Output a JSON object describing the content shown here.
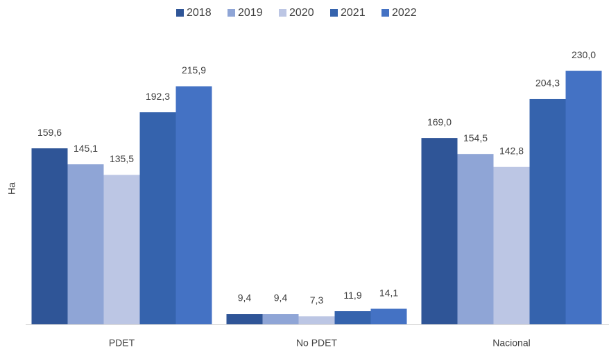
{
  "chart_data": {
    "type": "bar",
    "y_label": "Ha",
    "categories": [
      "PDET",
      "No PDET",
      "Nacional"
    ],
    "series": [
      {
        "name": "2018",
        "color": "#2f5597",
        "values": [
          159.6,
          9.4,
          169.0
        ],
        "value_labels": [
          "159,6",
          "9,4",
          "169,0"
        ]
      },
      {
        "name": "2019",
        "color": "#8fa5d6",
        "values": [
          145.1,
          9.4,
          154.5
        ],
        "value_labels": [
          "145,1",
          "9,4",
          "154,5"
        ]
      },
      {
        "name": "2020",
        "color": "#bcc6e4",
        "values": [
          135.5,
          7.3,
          142.8
        ],
        "value_labels": [
          "135,5",
          "7,3",
          "142,8"
        ]
      },
      {
        "name": "2021",
        "color": "#3563ad",
        "values": [
          192.3,
          11.9,
          204.3
        ],
        "value_labels": [
          "192,3",
          "11,9",
          "204,3"
        ]
      },
      {
        "name": "2022",
        "color": "#4472c4",
        "values": [
          215.9,
          14.1,
          230.0
        ],
        "value_labels": [
          "215,9",
          "14,1",
          "230,0"
        ]
      }
    ],
    "ylim": [
      0,
      250
    ],
    "legend": "top"
  }
}
